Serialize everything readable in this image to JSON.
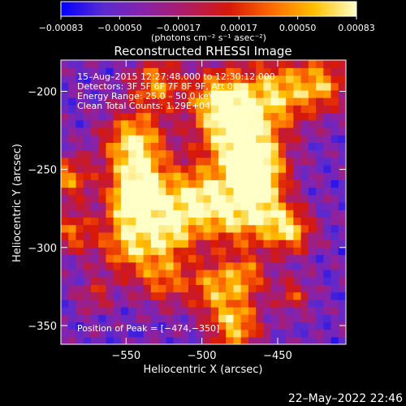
{
  "chart_data": {
    "type": "heatmap",
    "title": "Reconstructed RHESSI Image",
    "xlabel": "Heliocentric X (arcsec)",
    "ylabel": "Heliocentric Y (arcsec)",
    "xlim": [
      -593,
      -405
    ],
    "ylim": [
      -362,
      -180
    ],
    "x_ticks": [
      {
        "value": -550,
        "label": "−550"
      },
      {
        "value": -500,
        "label": "−500"
      },
      {
        "value": -450,
        "label": "−450"
      }
    ],
    "y_ticks": [
      {
        "value": -200,
        "label": "−200"
      },
      {
        "value": -250,
        "label": "−250"
      },
      {
        "value": -300,
        "label": "−300"
      },
      {
        "value": -350,
        "label": "−350"
      }
    ],
    "colorbar": {
      "min": -0.00083,
      "max": 0.00083,
      "ticks": [
        {
          "value": -0.00083,
          "label": "−0.00083"
        },
        {
          "value": -0.0005,
          "label": "−0.00050"
        },
        {
          "value": -0.00017,
          "label": "−0.00017"
        },
        {
          "value": 0.00017,
          "label": "0.00017"
        },
        {
          "value": 0.0005,
          "label": "0.00050"
        },
        {
          "value": 0.00083,
          "label": "0.00083"
        }
      ],
      "unit_label": "(photons cm⁻² s⁻¹ asec⁻²)",
      "colors": [
        "#0000ff",
        "#5a2ad0",
        "#8a22a8",
        "#b01c60",
        "#d81808",
        "#ff6a00",
        "#ffc000",
        "#ffffc8"
      ]
    },
    "annotations": [
      "15–Aug–2015 12:27:48.000 to 12:30:12.000",
      "Detectors: 3F 5F 6F 7F 8F 9F, Att 0",
      "Energy Range: 25.0 – 50.0 keV",
      "Clean     Total Counts: 1.29E+04"
    ],
    "peak_label": "Position of Peak = [−474,−350]",
    "peak_position": [
      -474,
      -350
    ],
    "grid": false
  },
  "footer": {
    "timestamp": "22–May–2022 22:46"
  }
}
